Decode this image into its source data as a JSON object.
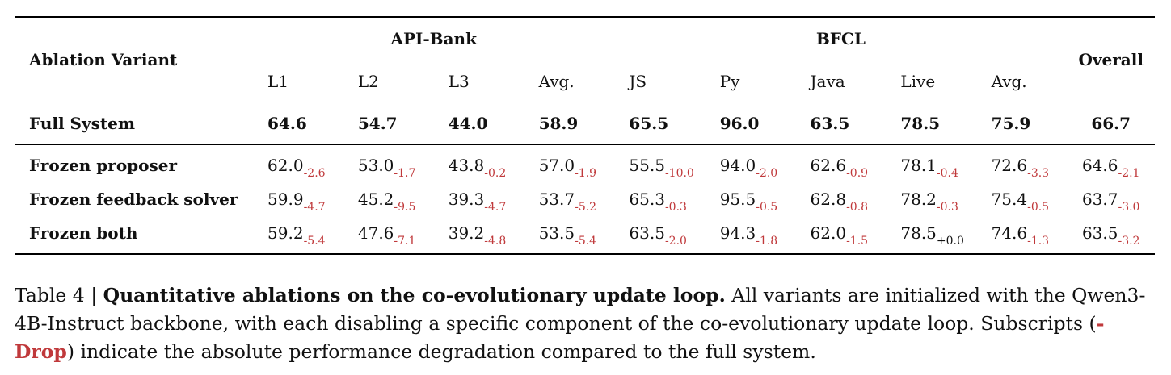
{
  "table": {
    "header": {
      "variant_label": "Ablation Variant",
      "group_apibank": "API-Bank",
      "group_bfcl": "BFCL",
      "overall_label": "Overall",
      "apibank_cols": [
        "L1",
        "L2",
        "L3",
        "Avg."
      ],
      "bfcl_cols": [
        "JS",
        "Py",
        "Java",
        "Live",
        "Avg."
      ]
    },
    "full_system": {
      "label": "Full System",
      "values": [
        "64.6",
        "54.7",
        "44.0",
        "58.9",
        "65.5",
        "96.0",
        "63.5",
        "78.5",
        "75.9",
        "66.7"
      ]
    },
    "variants": [
      {
        "label": "Frozen proposer",
        "cells": [
          {
            "v": "62.0",
            "d": "-2.6"
          },
          {
            "v": "53.0",
            "d": "-1.7"
          },
          {
            "v": "43.8",
            "d": "-0.2"
          },
          {
            "v": "57.0",
            "d": "-1.9"
          },
          {
            "v": "55.5",
            "d": "-10.0"
          },
          {
            "v": "94.0",
            "d": "-2.0"
          },
          {
            "v": "62.6",
            "d": "-0.9"
          },
          {
            "v": "78.1",
            "d": "-0.4"
          },
          {
            "v": "72.6",
            "d": "-3.3"
          },
          {
            "v": "64.6",
            "d": "-2.1"
          }
        ]
      },
      {
        "label": "Frozen feedback solver",
        "cells": [
          {
            "v": "59.9",
            "d": "-4.7"
          },
          {
            "v": "45.2",
            "d": "-9.5"
          },
          {
            "v": "39.3",
            "d": "-4.7"
          },
          {
            "v": "53.7",
            "d": "-5.2"
          },
          {
            "v": "65.3",
            "d": "-0.3"
          },
          {
            "v": "95.5",
            "d": "-0.5"
          },
          {
            "v": "62.8",
            "d": "-0.8"
          },
          {
            "v": "78.2",
            "d": "-0.3"
          },
          {
            "v": "75.4",
            "d": "-0.5"
          },
          {
            "v": "63.7",
            "d": "-3.0"
          }
        ]
      },
      {
        "label": "Frozen both",
        "cells": [
          {
            "v": "59.2",
            "d": "-5.4"
          },
          {
            "v": "47.6",
            "d": "-7.1"
          },
          {
            "v": "39.2",
            "d": "-4.8"
          },
          {
            "v": "53.5",
            "d": "-5.4"
          },
          {
            "v": "63.5",
            "d": "-2.0"
          },
          {
            "v": "94.3",
            "d": "-1.8"
          },
          {
            "v": "62.0",
            "d": "-1.5"
          },
          {
            "v": "78.5",
            "d": "+0.0"
          },
          {
            "v": "74.6",
            "d": "-1.3"
          },
          {
            "v": "63.5",
            "d": "-3.2"
          }
        ]
      }
    ]
  },
  "caption": {
    "prefix": "Table 4 | ",
    "title": "Quantitative ablations on the co-evolutionary update loop.",
    "body": " All variants are initialized with the Qwen3-4B-Instruct backbone, with each disabling a specific component of the co-evolutionary update loop. Subscripts (",
    "drop_label": "-Drop",
    "body_end": ") indicate the absolute performance degradation compared to the full system."
  },
  "colors": {
    "drop": "#c0393b",
    "text": "#111111"
  }
}
